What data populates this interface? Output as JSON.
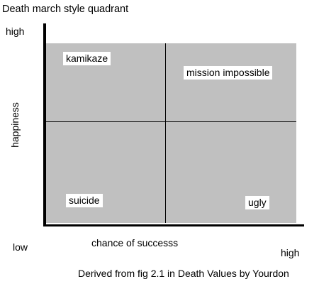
{
  "diagram": {
    "title": "Death march style quadrant",
    "y_axis": {
      "label": "happiness",
      "high_label": "high",
      "low_label": "low"
    },
    "x_axis": {
      "label": "chance of successs",
      "high_label": "high"
    },
    "quadrants": {
      "top_left": "kamikaze",
      "top_right": "mission impossible",
      "bottom_left": "suicide",
      "bottom_right": "ugly"
    },
    "caption": "Derived from fig 2.1 in Death Values by Yourdon",
    "colors": {
      "plot_background": "#c0c0c0",
      "label_background": "#ffffff",
      "lines": "#000000"
    }
  }
}
